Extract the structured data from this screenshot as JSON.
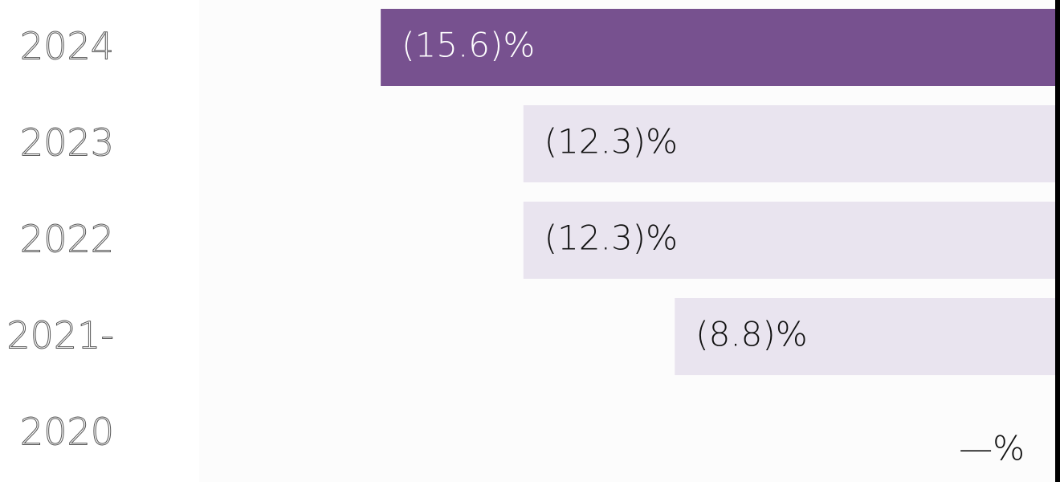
{
  "chart_data": {
    "type": "bar",
    "orientation": "horizontal",
    "categories": [
      "2024",
      "2023",
      "2022",
      "2021-",
      "2020"
    ],
    "values": [
      -15.6,
      -12.3,
      -12.3,
      -8.8,
      0
    ],
    "value_labels": [
      "(15.6)%",
      "(12.3)%",
      "(12.3)%",
      "(8.8)%",
      "—%"
    ],
    "colors": [
      "#77518f",
      "#e9e4ef",
      "#e9e4ef",
      "#e9e4ef",
      "#e9e4ef"
    ],
    "xlim": [
      -19.8,
      0
    ]
  }
}
